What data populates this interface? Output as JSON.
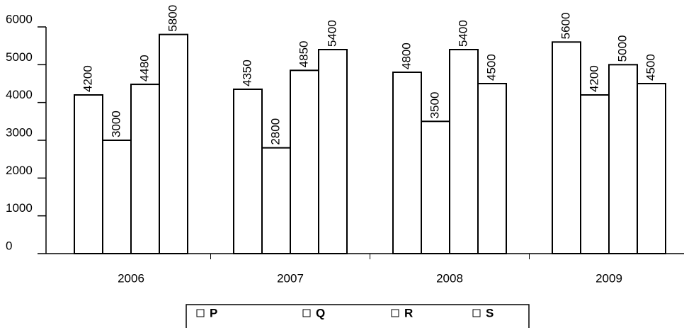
{
  "chart_data": {
    "type": "bar",
    "categories": [
      "2006",
      "2007",
      "2008",
      "2009"
    ],
    "series": [
      {
        "name": "P",
        "color": "#ffffff",
        "values": [
          4200,
          4350,
          4800,
          5600
        ]
      },
      {
        "name": "Q",
        "color": "#ffffff",
        "values": [
          3000,
          2800,
          3500,
          4200
        ]
      },
      {
        "name": "R",
        "color": "#ffffff",
        "values": [
          4480,
          4850,
          5400,
          5000
        ]
      },
      {
        "name": "S",
        "color": "#ffffff",
        "values": [
          5800,
          5400,
          4500,
          4500
        ]
      }
    ],
    "ylim": [
      0,
      6000
    ],
    "yticks": [
      0,
      1000,
      2000,
      3000,
      4000,
      5000,
      6000
    ],
    "grid": false
  }
}
